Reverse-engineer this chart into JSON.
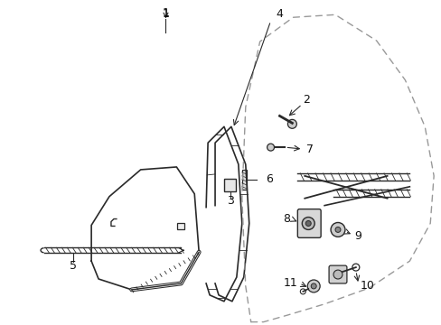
{
  "background_color": "#ffffff",
  "line_color": "#2a2a2a",
  "dash_color": "#999999",
  "label_color": "#111111",
  "figsize": [
    4.89,
    3.6
  ],
  "dpi": 100
}
